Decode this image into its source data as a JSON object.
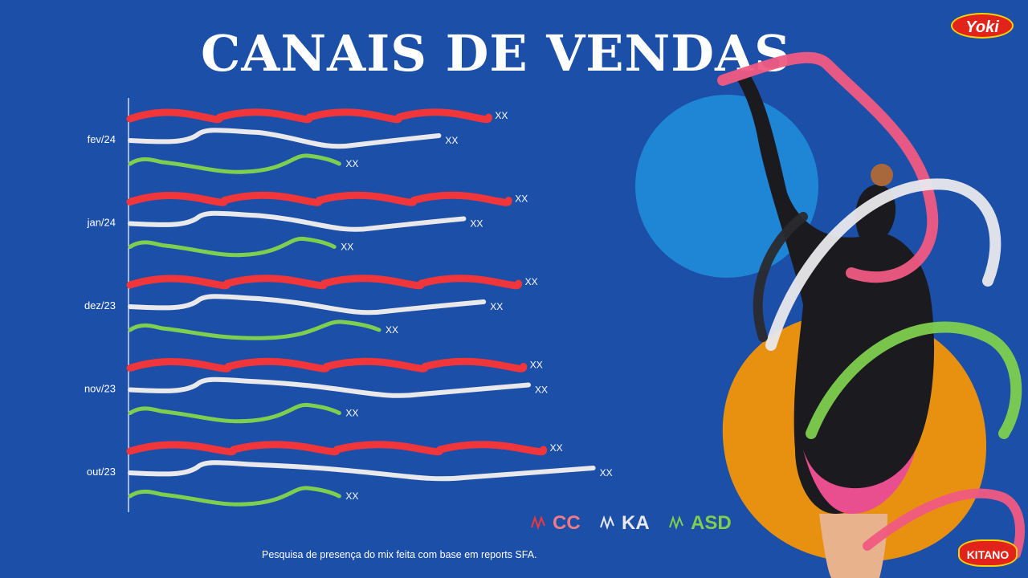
{
  "slide": {
    "title": "CANAIS DE VENDAS",
    "footnote": "Pesquisa de presença do mix feita com base em reports SFA.",
    "logos": {
      "top_right": "Yoki",
      "bottom_right": "KITANO"
    }
  },
  "colors": {
    "background": "#1b4fa8",
    "CC": "#f0363a",
    "KA": "#e9e9ec",
    "ASD": "#7ecf4f",
    "circle_blue": "#1f86d6",
    "circle_orange": "#e8900f"
  },
  "chart_data": {
    "type": "bar",
    "title": "CANAIS DE VENDAS",
    "categories": [
      "fev/24",
      "jan/24",
      "dez/23",
      "nov/23",
      "out/23"
    ],
    "series": [
      {
        "name": "CC",
        "values": [
          0.72,
          0.76,
          0.78,
          0.79,
          0.83
        ],
        "labels": [
          "XX",
          "XX",
          "XX",
          "XX",
          "XX"
        ]
      },
      {
        "name": "KA",
        "values": [
          0.62,
          0.67,
          0.71,
          0.8,
          0.93
        ],
        "labels": [
          "XX",
          "XX",
          "XX",
          "XX",
          "XX"
        ]
      },
      {
        "name": "ASD",
        "values": [
          0.42,
          0.41,
          0.5,
          0.42,
          0.42
        ],
        "labels": [
          "XX",
          "XX",
          "XX",
          "XX",
          "XX"
        ]
      }
    ],
    "legend": [
      "CC",
      "KA",
      "ASD"
    ],
    "legend_position": "bottom-right",
    "value_axis": "hidden",
    "xlabel": "",
    "ylabel": ""
  }
}
